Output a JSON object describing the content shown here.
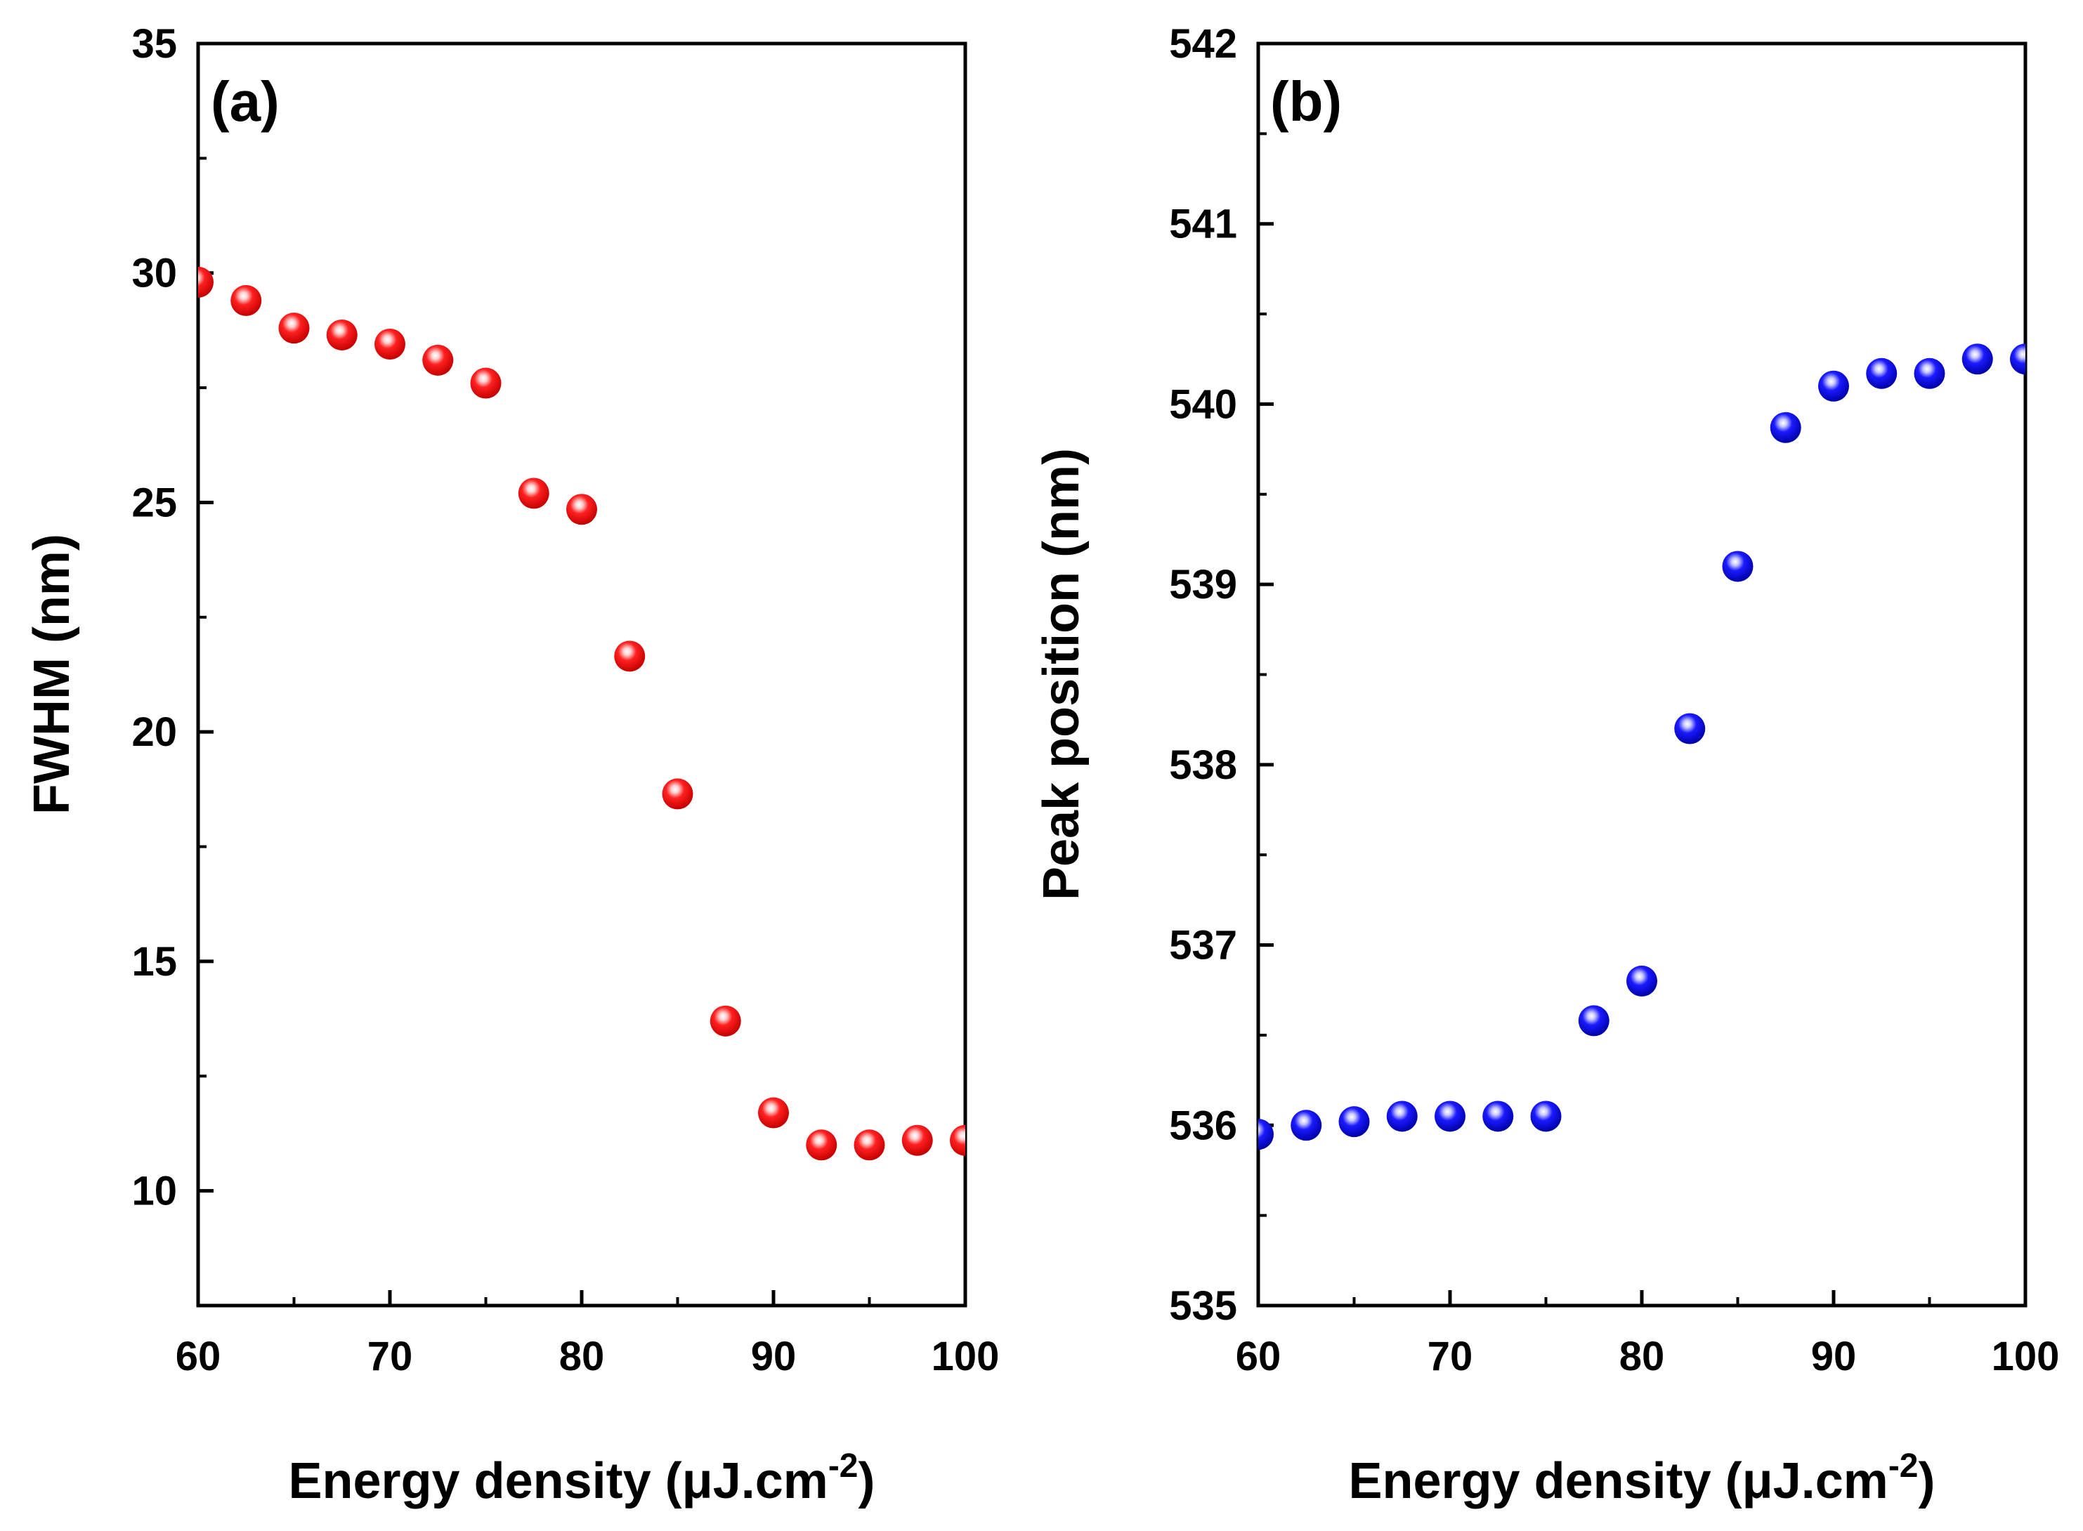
{
  "colors": {
    "panel_a_marker": "#ff0000",
    "panel_b_marker": "#0000ee",
    "axis": "#000000",
    "background": "#ffffff"
  },
  "chart_data": [
    {
      "type": "scatter",
      "panel_label": "(a)",
      "xlabel_main": "Energy density (μJ.cm",
      "xlabel_sup": "-2",
      "xlabel_end": ")",
      "ylabel": "FWHM (nm)",
      "xlim": [
        60,
        100
      ],
      "ylim": [
        7.5,
        35
      ],
      "xticks": [
        "60",
        "70",
        "80",
        "90",
        "100"
      ],
      "xtick_values": [
        60,
        70,
        80,
        90,
        100
      ],
      "yticks": [
        "10",
        "15",
        "20",
        "25",
        "30",
        "35"
      ],
      "ytick_values": [
        10,
        15,
        20,
        25,
        30,
        35
      ],
      "x": [
        60,
        62.5,
        65,
        67.5,
        70,
        72.5,
        75,
        77.5,
        80,
        82.5,
        85,
        87.5,
        90,
        92.5,
        95,
        97.5,
        100
      ],
      "y": [
        29.8,
        29.4,
        28.8,
        28.65,
        28.45,
        28.1,
        27.6,
        25.2,
        24.85,
        21.65,
        18.65,
        13.7,
        11.7,
        11.0,
        11.0,
        11.1,
        11.1
      ],
      "marker_color": "#ff0000"
    },
    {
      "type": "scatter",
      "panel_label": "(b)",
      "xlabel_main": "Energy density (μJ.cm",
      "xlabel_sup": "-2",
      "xlabel_end": ")",
      "ylabel": "Peak position (nm)",
      "xlim": [
        60,
        100
      ],
      "ylim": [
        535,
        542
      ],
      "xticks": [
        "60",
        "70",
        "80",
        "90",
        "100"
      ],
      "xtick_values": [
        60,
        70,
        80,
        90,
        100
      ],
      "yticks": [
        "535",
        "536",
        "537",
        "538",
        "539",
        "540",
        "541",
        "542"
      ],
      "ytick_values": [
        535,
        536,
        537,
        538,
        539,
        540,
        541,
        542
      ],
      "x": [
        60,
        62.5,
        65,
        67.5,
        70,
        72.5,
        75,
        77.5,
        80,
        82.5,
        85,
        87.5,
        90,
        92.5,
        95,
        97.5,
        100
      ],
      "y": [
        535.95,
        536.0,
        536.02,
        536.05,
        536.05,
        536.05,
        536.05,
        536.58,
        536.8,
        538.2,
        539.1,
        539.87,
        540.1,
        540.17,
        540.17,
        540.25,
        540.25
      ],
      "marker_color": "#0000ee"
    }
  ]
}
